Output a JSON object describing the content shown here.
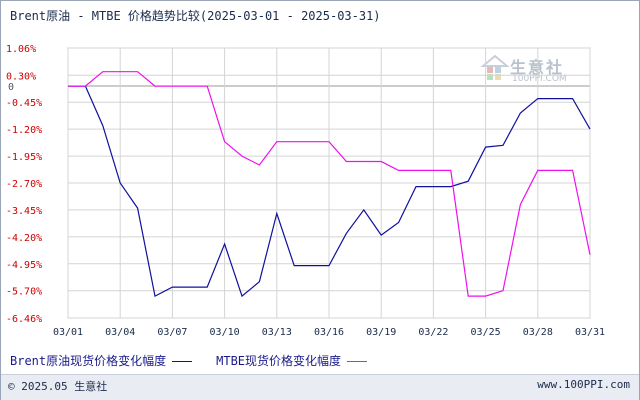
{
  "title": "Brent原油 - MTBE 价格趋势比较(2025-03-01 - 2025-03-31)",
  "watermark": {
    "name": "生意社",
    "url": "100PPI.COM",
    "logo": "house-logo"
  },
  "footer": {
    "copyright": "© 2025.05 生意社",
    "website": "www.100PPI.com"
  },
  "colors": {
    "brent": "#1010a0",
    "mtbe": "#ee10ee",
    "grid": "#d4d4d4",
    "zero_line": "#999999"
  },
  "chart_data": {
    "type": "line",
    "title": "Brent原油 - MTBE 价格趋势比较(2025-03-01 - 2025-03-31)",
    "xlabel": "",
    "ylabel": "",
    "x": [
      "03/01",
      "03/02",
      "03/03",
      "03/04",
      "03/05",
      "03/06",
      "03/07",
      "03/08",
      "03/09",
      "03/10",
      "03/11",
      "03/12",
      "03/13",
      "03/14",
      "03/15",
      "03/16",
      "03/17",
      "03/18",
      "03/19",
      "03/20",
      "03/21",
      "03/22",
      "03/23",
      "03/24",
      "03/25",
      "03/26",
      "03/27",
      "03/28",
      "03/29",
      "03/30",
      "03/31"
    ],
    "x_ticks": [
      "03/01",
      "03/04",
      "03/07",
      "03/10",
      "03/13",
      "03/16",
      "03/19",
      "03/22",
      "03/25",
      "03/28",
      "03/31"
    ],
    "y_ticks": [
      "1.06%",
      "0.30%",
      "0",
      "-0.45%",
      "-1.20%",
      "-1.95%",
      "-2.70%",
      "-3.45%",
      "-4.20%",
      "-4.95%",
      "-5.70%",
      "-6.46%"
    ],
    "y_tick_values": [
      1.06,
      0.3,
      0,
      -0.45,
      -1.2,
      -1.95,
      -2.7,
      -3.45,
      -4.2,
      -4.95,
      -5.7,
      -6.46
    ],
    "ylim": [
      -6.46,
      1.06
    ],
    "grid": true,
    "legend_position": "bottom-left",
    "series": [
      {
        "name": "Brent原油现货价格变化幅度",
        "color": "#1010a0",
        "values": [
          0.0,
          0.0,
          -1.1,
          -2.7,
          -3.4,
          -5.85,
          -5.6,
          -5.6,
          -5.6,
          -4.4,
          -5.85,
          -5.45,
          -3.55,
          -5.0,
          -5.0,
          -5.0,
          -4.1,
          -3.45,
          -4.15,
          -3.8,
          -2.8,
          -2.8,
          -2.8,
          -2.65,
          -1.7,
          -1.65,
          -0.75,
          -0.35,
          -0.35,
          -0.35,
          -1.2
        ]
      },
      {
        "name": "MTBE现货价格变化幅度",
        "color": "#ee10ee",
        "values": [
          0.0,
          0.0,
          0.4,
          0.4,
          0.4,
          0.0,
          0.0,
          0.0,
          0.0,
          -1.55,
          -1.95,
          -2.2,
          -1.55,
          -1.55,
          -1.55,
          -1.55,
          -2.1,
          -2.1,
          -2.1,
          -2.35,
          -2.35,
          -2.35,
          -2.35,
          -5.85,
          -5.85,
          -5.7,
          -3.3,
          -2.35,
          -2.35,
          -2.35,
          -4.7
        ]
      }
    ]
  },
  "legend": {
    "brent_label": "Brent原油现货价格变化幅度",
    "mtbe_label": "MTBE现货价格变化幅度"
  }
}
